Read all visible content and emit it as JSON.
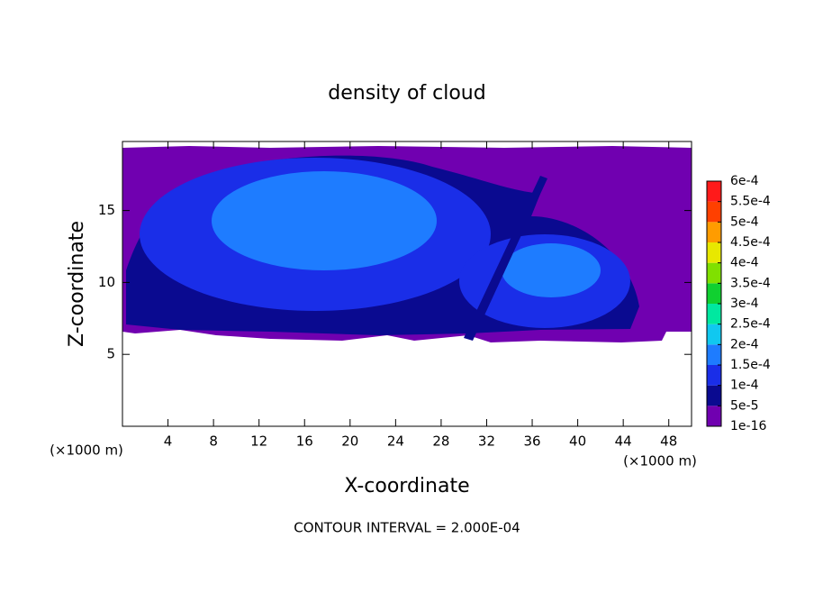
{
  "chart_data": {
    "type": "contour",
    "title": "density of cloud",
    "xlabel": "X-coordinate",
    "ylabel": "Z-coordinate",
    "x_unit_label": "(×1000 m)",
    "y_unit_label": "(×1000 m)",
    "note": "CONTOUR INTERVAL = 2.000E-04",
    "xlim": [
      0,
      50
    ],
    "ylim": [
      0,
      19.8
    ],
    "xticks": [
      4,
      8,
      12,
      16,
      20,
      24,
      28,
      32,
      36,
      40,
      44,
      48
    ],
    "yticks": [
      5,
      10,
      15
    ],
    "colorbar": {
      "levels": [
        {
          "value": 1e-16,
          "label": "1e-16"
        },
        {
          "value": 5e-05,
          "label": "5e-5"
        },
        {
          "value": 0.0001,
          "label": "1e-4"
        },
        {
          "value": 0.00015,
          "label": "1.5e-4"
        },
        {
          "value": 0.0002,
          "label": "2e-4"
        },
        {
          "value": 0.00025,
          "label": "2.5e-4"
        },
        {
          "value": 0.0003,
          "label": "3e-4"
        },
        {
          "value": 0.00035,
          "label": "3.5e-4"
        },
        {
          "value": 0.0004,
          "label": "4e-4"
        },
        {
          "value": 0.00045,
          "label": "4.5e-4"
        },
        {
          "value": 0.0005,
          "label": "5e-4"
        },
        {
          "value": 0.00055,
          "label": "5.5e-4"
        },
        {
          "value": 0.0006,
          "label": "6e-4"
        }
      ],
      "colors": [
        "#7000b0",
        "#0a0a90",
        "#1a2ee8",
        "#1e7cff",
        "#10c8f0",
        "#00e8a0",
        "#10d030",
        "#80e000",
        "#e8e800",
        "#ff9c00",
        "#ff4000",
        "#ff1a1a"
      ]
    }
  }
}
